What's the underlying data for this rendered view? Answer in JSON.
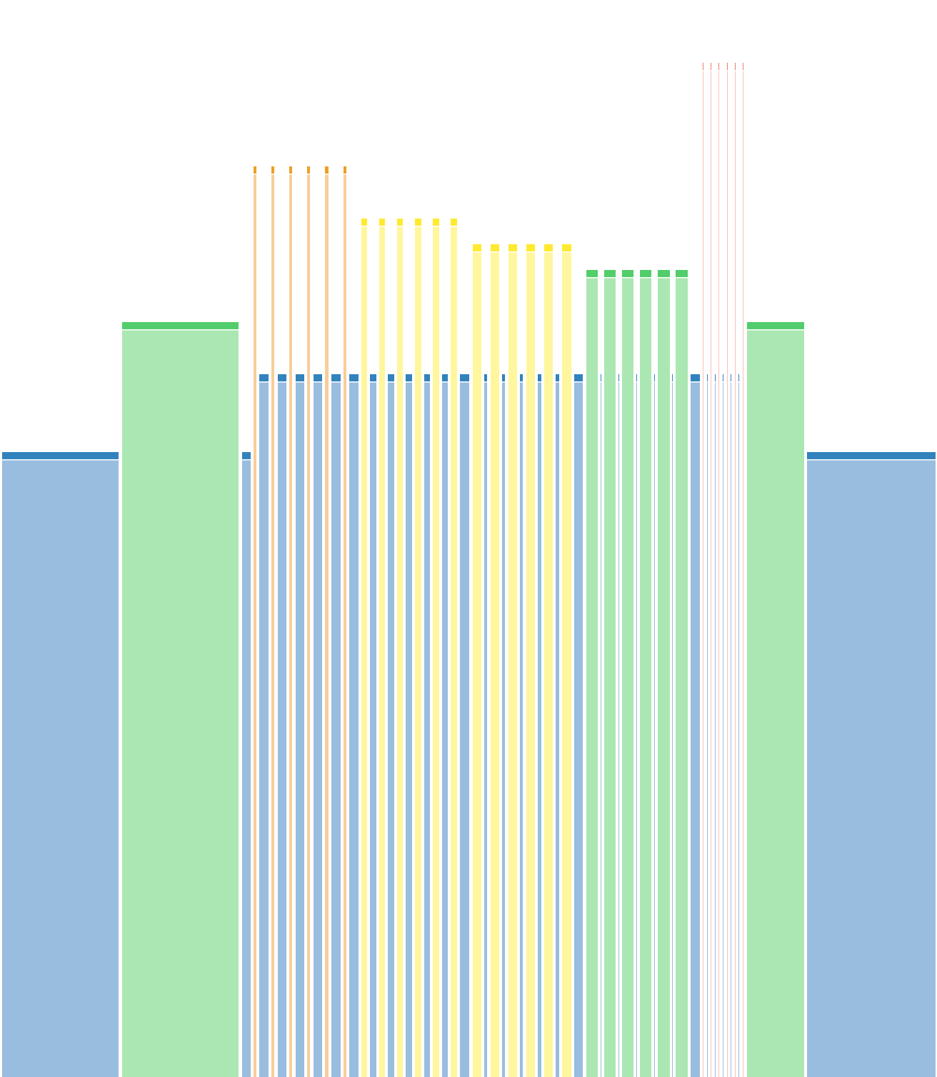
{
  "chart_data": {
    "type": "bar",
    "ylim": [
      0,
      1508
    ],
    "grid": false,
    "legend": "none",
    "colors": {
      "blue": {
        "fill": "#99bddf",
        "cap": "#3182bd"
      },
      "green": {
        "fill": "#abe7b2",
        "cap": "#52cd6b"
      },
      "orange": {
        "fill": "#f8cd9a",
        "cap": "#eca023"
      },
      "yellow": {
        "fill": "#fff69d",
        "cap": "#ffea2f"
      },
      "red": {
        "fill": "#f9c2b6",
        "cap": "#ec7b63"
      }
    },
    "bars": [
      {
        "x0": 3,
        "x1": 166,
        "value": 875,
        "color": "blue"
      },
      {
        "x0": 171,
        "x1": 334,
        "value": 1057,
        "color": "green"
      },
      {
        "x0": 339,
        "x1": 351,
        "value": 875,
        "color": "blue"
      },
      {
        "x0": 355,
        "x1": 359,
        "value": 1275,
        "color": "orange"
      },
      {
        "x0": 363,
        "x1": 376,
        "value": 984,
        "color": "blue"
      },
      {
        "x0": 380,
        "x1": 384,
        "value": 1275,
        "color": "orange"
      },
      {
        "x0": 389,
        "x1": 401,
        "value": 984,
        "color": "blue"
      },
      {
        "x0": 405,
        "x1": 409,
        "value": 1275,
        "color": "orange"
      },
      {
        "x0": 414,
        "x1": 426,
        "value": 984,
        "color": "blue"
      },
      {
        "x0": 430,
        "x1": 434,
        "value": 1275,
        "color": "orange"
      },
      {
        "x0": 439,
        "x1": 451,
        "value": 984,
        "color": "blue"
      },
      {
        "x0": 455,
        "x1": 460,
        "value": 1275,
        "color": "orange"
      },
      {
        "x0": 464,
        "x1": 477,
        "value": 984,
        "color": "blue"
      },
      {
        "x0": 481,
        "x1": 485,
        "value": 1275,
        "color": "orange"
      },
      {
        "x0": 489,
        "x1": 502,
        "value": 984,
        "color": "blue"
      },
      {
        "x0": 506,
        "x1": 514,
        "value": 1202,
        "color": "yellow"
      },
      {
        "x0": 518,
        "x1": 527,
        "value": 984,
        "color": "blue"
      },
      {
        "x0": 531,
        "x1": 539,
        "value": 1202,
        "color": "yellow"
      },
      {
        "x0": 543,
        "x1": 552,
        "value": 984,
        "color": "blue"
      },
      {
        "x0": 556,
        "x1": 564,
        "value": 1202,
        "color": "yellow"
      },
      {
        "x0": 568,
        "x1": 577,
        "value": 984,
        "color": "blue"
      },
      {
        "x0": 581,
        "x1": 590,
        "value": 1202,
        "color": "yellow"
      },
      {
        "x0": 594,
        "x1": 602,
        "value": 984,
        "color": "blue"
      },
      {
        "x0": 606,
        "x1": 615,
        "value": 1202,
        "color": "yellow"
      },
      {
        "x0": 619,
        "x1": 627,
        "value": 984,
        "color": "blue"
      },
      {
        "x0": 631,
        "x1": 640,
        "value": 1202,
        "color": "yellow"
      },
      {
        "x0": 644,
        "x1": 657,
        "value": 984,
        "color": "blue"
      },
      {
        "x0": 662,
        "x1": 674,
        "value": 1166,
        "color": "yellow"
      },
      {
        "x0": 678,
        "x1": 682,
        "value": 984,
        "color": "blue"
      },
      {
        "x0": 687,
        "x1": 699,
        "value": 1166,
        "color": "yellow"
      },
      {
        "x0": 703,
        "x1": 707,
        "value": 984,
        "color": "blue"
      },
      {
        "x0": 712,
        "x1": 724,
        "value": 1166,
        "color": "yellow"
      },
      {
        "x0": 728,
        "x1": 732,
        "value": 984,
        "color": "blue"
      },
      {
        "x0": 737,
        "x1": 749,
        "value": 1166,
        "color": "yellow"
      },
      {
        "x0": 753,
        "x1": 758,
        "value": 984,
        "color": "blue"
      },
      {
        "x0": 762,
        "x1": 774,
        "value": 1166,
        "color": "yellow"
      },
      {
        "x0": 778,
        "x1": 783,
        "value": 984,
        "color": "blue"
      },
      {
        "x0": 787,
        "x1": 800,
        "value": 1166,
        "color": "yellow"
      },
      {
        "x0": 804,
        "x1": 816,
        "value": 984,
        "color": "blue"
      },
      {
        "x0": 821,
        "x1": 837,
        "value": 1130,
        "color": "green"
      },
      {
        "x0": 841,
        "x1": 842,
        "value": 984,
        "color": "blue"
      },
      {
        "x0": 846,
        "x1": 862,
        "value": 1130,
        "color": "green"
      },
      {
        "x0": 866,
        "x1": 867,
        "value": 984,
        "color": "blue"
      },
      {
        "x0": 871,
        "x1": 887,
        "value": 1130,
        "color": "green"
      },
      {
        "x0": 891,
        "x1": 892,
        "value": 984,
        "color": "blue"
      },
      {
        "x0": 896,
        "x1": 912,
        "value": 1130,
        "color": "green"
      },
      {
        "x0": 916,
        "x1": 917,
        "value": 984,
        "color": "blue"
      },
      {
        "x0": 921,
        "x1": 938,
        "value": 1130,
        "color": "green"
      },
      {
        "x0": 941,
        "x1": 942,
        "value": 984,
        "color": "blue"
      },
      {
        "x0": 946,
        "x1": 963,
        "value": 1130,
        "color": "green"
      },
      {
        "x0": 967,
        "x1": 980,
        "value": 984,
        "color": "blue"
      },
      {
        "x0": 984,
        "x1": 985,
        "value": 1420,
        "color": "red"
      },
      {
        "x0": 990,
        "x1": 991,
        "value": 984,
        "color": "blue"
      },
      {
        "x0": 995,
        "x1": 996,
        "value": 1420,
        "color": "red"
      },
      {
        "x0": 1001,
        "x1": 1002,
        "value": 984,
        "color": "blue"
      },
      {
        "x0": 1006,
        "x1": 1007,
        "value": 1420,
        "color": "red"
      },
      {
        "x0": 1012,
        "x1": 1013,
        "value": 984,
        "color": "blue"
      },
      {
        "x0": 1018,
        "x1": 1019,
        "value": 1420,
        "color": "red"
      },
      {
        "x0": 1023,
        "x1": 1024,
        "value": 984,
        "color": "blue"
      },
      {
        "x0": 1029,
        "x1": 1030,
        "value": 1420,
        "color": "red"
      },
      {
        "x0": 1034,
        "x1": 1035,
        "value": 984,
        "color": "blue"
      },
      {
        "x0": 1040,
        "x1": 1041,
        "value": 1420,
        "color": "red"
      },
      {
        "x0": 1046,
        "x1": 1126,
        "value": 1057,
        "color": "green"
      },
      {
        "x0": 1130,
        "x1": 1310,
        "value": 875,
        "color": "blue"
      }
    ]
  }
}
